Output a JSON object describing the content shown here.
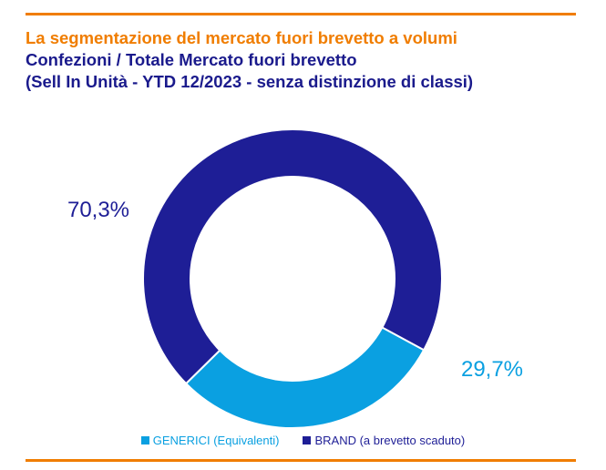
{
  "header": {
    "title": "La segmentazione del mercato fuori brevetto a volumi",
    "subtitle1": "Confezioni / Totale Mercato fuori brevetto",
    "subtitle2": "(Sell In Unità - YTD 12/2023 - senza distinzione di classi)"
  },
  "colors": {
    "accent": "#F07D00",
    "brand_series": "#1E1E96",
    "generici_series": "#0AA0E1"
  },
  "chart_data": {
    "type": "pie",
    "variant": "donut",
    "title": "La segmentazione del mercato fuori brevetto a volumi",
    "series": [
      {
        "name": "GENERICI (Equivalenti)",
        "value": 29.7,
        "label": "29,7%",
        "color": "#0AA0E1"
      },
      {
        "name": "BRAND (a brevetto scaduto)",
        "value": 70.3,
        "label": "70,3%",
        "color": "#1E1E96"
      }
    ],
    "legend_position": "bottom"
  }
}
